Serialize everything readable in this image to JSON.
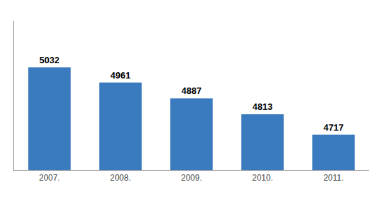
{
  "chart_data": {
    "type": "bar",
    "categories": [
      "2007.",
      "2008.",
      "2009.",
      "2010.",
      "2011."
    ],
    "values": [
      5032,
      4961,
      4887,
      4813,
      4717
    ],
    "color": "#3a7abf",
    "ylim": [
      4550,
      5250
    ],
    "grid": false,
    "data_labels": true,
    "tick_labels": "x"
  }
}
